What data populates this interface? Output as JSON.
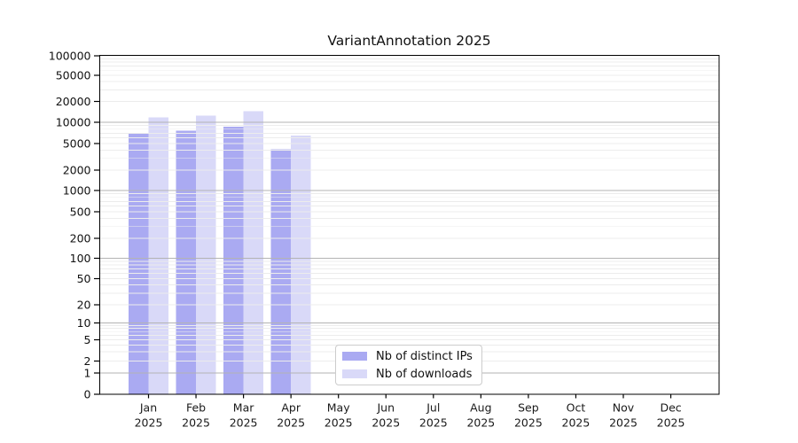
{
  "chart_data": {
    "type": "bar",
    "title": "VariantAnnotation 2025",
    "year": "2025",
    "categories": [
      "Jan",
      "Feb",
      "Mar",
      "Apr",
      "May",
      "Jun",
      "Jul",
      "Aug",
      "Sep",
      "Oct",
      "Nov",
      "Dec"
    ],
    "series": [
      {
        "name": "Nb of distinct IPs",
        "color": "#aaaaf2",
        "values": [
          6900,
          7600,
          8700,
          4100,
          null,
          null,
          null,
          null,
          null,
          null,
          null,
          null
        ]
      },
      {
        "name": "Nb of downloads",
        "color": "#d9d9f8",
        "values": [
          11700,
          12400,
          14500,
          6500,
          null,
          null,
          null,
          null,
          null,
          null,
          null,
          null
        ]
      }
    ],
    "y_ticks": [
      0,
      1,
      2,
      5,
      10,
      20,
      50,
      100,
      200,
      500,
      1000,
      2000,
      5000,
      10000,
      20000,
      50000,
      100000
    ],
    "y_scale": "log",
    "ylim": [
      0,
      100000
    ],
    "grid": true,
    "legend_position": "bottom-center",
    "colors": {
      "bar_dark": "#aaaaf2",
      "bar_light": "#d9d9f8",
      "grid_minor": "#ececec",
      "grid_major": "#b3b3b3",
      "axis": "#000000",
      "text": "#1a1a1a"
    }
  }
}
